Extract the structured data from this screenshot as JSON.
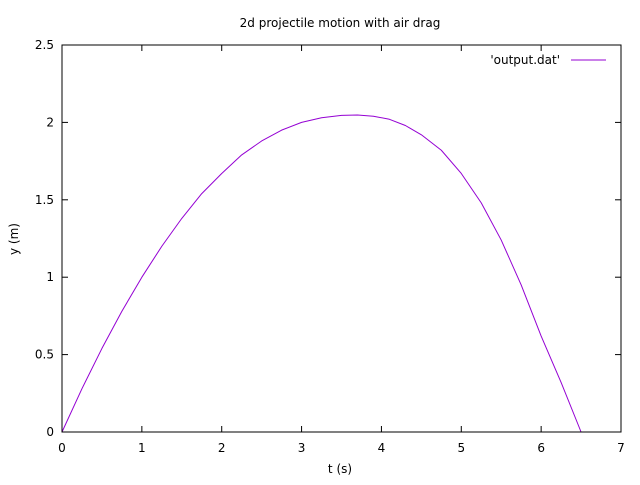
{
  "chart_data": {
    "type": "line",
    "title": "2d projectile motion with air drag",
    "xlabel": "t (s)",
    "ylabel": "y (m)",
    "xlim": [
      0,
      7
    ],
    "ylim": [
      0,
      2.5
    ],
    "x_ticks": [
      0,
      1,
      2,
      3,
      4,
      5,
      6,
      7
    ],
    "x_tick_labels": [
      "0",
      "1",
      "2",
      "3",
      "4",
      "5",
      "6",
      "7"
    ],
    "y_ticks": [
      0,
      0.5,
      1,
      1.5,
      2,
      2.5
    ],
    "y_tick_labels": [
      "0",
      "0.5",
      "1",
      "1.5",
      "2",
      "2.5"
    ],
    "grid": false,
    "legend_position": "top-right",
    "series": [
      {
        "name": "'output.dat'",
        "color": "#9400d3",
        "x": [
          0,
          0.25,
          0.5,
          0.75,
          1.0,
          1.25,
          1.5,
          1.75,
          2.0,
          2.25,
          2.5,
          2.75,
          3.0,
          3.25,
          3.5,
          3.7,
          3.9,
          4.1,
          4.3,
          4.5,
          4.75,
          5.0,
          5.25,
          5.5,
          5.75,
          6.0,
          6.25,
          6.5,
          6.5,
          0
        ],
        "y": [
          0,
          0.28,
          0.54,
          0.78,
          1.0,
          1.2,
          1.38,
          1.54,
          1.67,
          1.79,
          1.88,
          1.95,
          2.0,
          2.03,
          2.045,
          2.048,
          2.04,
          2.02,
          1.98,
          1.92,
          1.82,
          1.67,
          1.48,
          1.24,
          0.95,
          0.62,
          0.32,
          0.0,
          0.0,
          0.0
        ]
      }
    ]
  }
}
